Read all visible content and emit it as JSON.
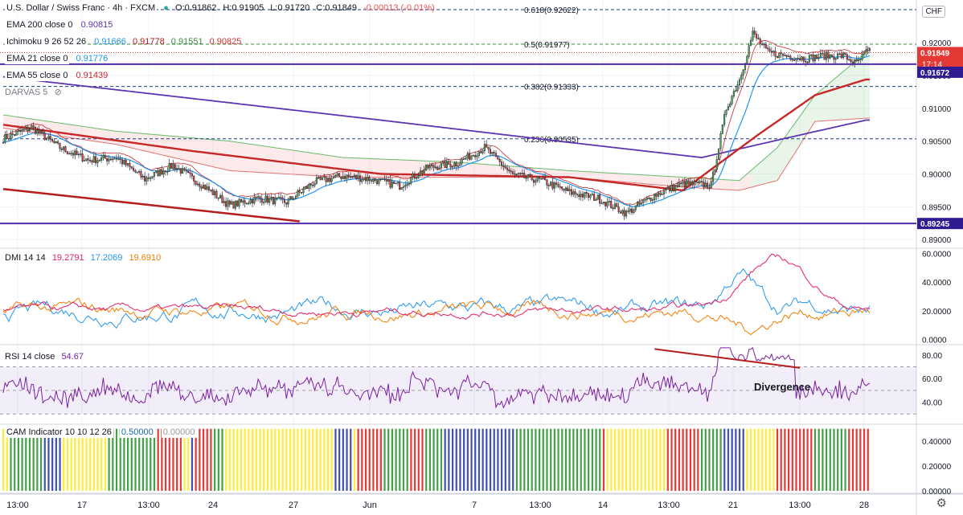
{
  "header": {
    "symbol": "U.S. Dollar / Swiss Franc · 4h · FXCM",
    "o": "O:0.91862",
    "h": "H:0.91905",
    "l": "L:0.91720",
    "c": "C:0.91849",
    "change": "-0.00013 (-0.01%)"
  },
  "currency_button": "CHF",
  "settings_icon": "gear-icon",
  "indicators": {
    "ema200": {
      "label": "EMA 200 close 0",
      "value": "0.90815"
    },
    "ichimoku": {
      "label": "Ichimoku 9 26 52 26",
      "v1": "0.91666",
      "v2": "0.91778",
      "v3": "0.91551",
      "v4": "0.90825"
    },
    "ema21": {
      "label": "EMA 21 close 0",
      "value": "0.91776"
    },
    "ema55": {
      "label": "EMA 55 close 0",
      "value": "0.91439"
    },
    "darvas": {
      "label": "DARVAS 5"
    },
    "dmi": {
      "label": "DMI 14 14",
      "v1": "19.2791",
      "v2": "17.2069",
      "v3": "19.6910"
    },
    "rsi": {
      "label": "RSI 14 close",
      "value": "54.67"
    },
    "cam": {
      "label": "CAM Indicator 10 10 12 26",
      "v1": "0.50000",
      "v2": "0.00000"
    }
  },
  "price_labels": {
    "last": "0.91849",
    "countdown": "17:14",
    "line1": "0.91672",
    "line2": "0.89245"
  },
  "fib_labels": [
    "0.618(0.92622)",
    "0.5(0.91977)",
    "0.382(0.91333)",
    "0.236(0.90535)"
  ],
  "annotation": "Divergence",
  "colors": {
    "up": "#26a69a",
    "down": "#ef5350",
    "ema200": "#5e35b1",
    "ema55": "#c62828",
    "ema21": "#2196f3",
    "rsi": "#7b1fa2",
    "dmi_plus": "#2196f3",
    "dmi_minus": "#e91e63",
    "adx": "#f57c00"
  },
  "chart_data": {
    "type": "candlestick",
    "panes": [
      "price",
      "DMI",
      "RSI",
      "CAM"
    ],
    "x_ticks": [
      "13:00",
      "17",
      "13:00",
      "24",
      "27",
      "Jun",
      "7",
      "13:00",
      "14",
      "13:00",
      "21",
      "13:00",
      "28"
    ],
    "price_axis": {
      "ticks": [
        "0.92000",
        "0.91500",
        "0.91000",
        "0.90500",
        "0.90000",
        "0.89500",
        "0.89000"
      ],
      "ylim": [
        0.8888,
        0.9265
      ]
    },
    "dmi_axis": {
      "ticks": [
        "60.0000",
        "40.0000",
        "20.0000",
        "0.0000"
      ],
      "ylim": [
        -3,
        63
      ]
    },
    "rsi_axis": {
      "ticks": [
        "80.00",
        "60.00",
        "40.00"
      ],
      "ylim": [
        22,
        88
      ]
    },
    "cam_axis": {
      "ticks": [
        "0.40000",
        "0.20000",
        "0.00000"
      ],
      "ylim": [
        -0.02,
        0.53
      ]
    },
    "price_anchors": [
      [
        0,
        0.9054
      ],
      [
        15,
        0.9071
      ],
      [
        30,
        0.904
      ],
      [
        45,
        0.9021
      ],
      [
        60,
        0.9025
      ],
      [
        75,
        0.8992
      ],
      [
        90,
        0.9013
      ],
      [
        105,
        0.8984
      ],
      [
        120,
        0.8952
      ],
      [
        135,
        0.8963
      ],
      [
        150,
        0.8957
      ],
      [
        165,
        0.8988
      ],
      [
        180,
        0.8997
      ],
      [
        195,
        0.8992
      ],
      [
        210,
        0.8982
      ],
      [
        225,
        0.901
      ],
      [
        240,
        0.9016
      ],
      [
        255,
        0.904
      ],
      [
        270,
        0.8998
      ],
      [
        285,
        0.899
      ],
      [
        300,
        0.8972
      ],
      [
        315,
        0.8963
      ],
      [
        330,
        0.894
      ],
      [
        345,
        0.8968
      ],
      [
        360,
        0.8985
      ],
      [
        375,
        0.8983
      ],
      [
        383,
        0.91
      ],
      [
        390,
        0.9144
      ],
      [
        397,
        0.9214
      ],
      [
        405,
        0.9185
      ],
      [
        415,
        0.918
      ],
      [
        425,
        0.9176
      ],
      [
        435,
        0.918
      ],
      [
        445,
        0.918
      ],
      [
        452,
        0.9168
      ],
      [
        457,
        0.9185
      ]
    ],
    "ema200": [
      [
        0,
        0.9148
      ],
      [
        100,
        0.9115
      ],
      [
        200,
        0.9082
      ],
      [
        300,
        0.9048
      ],
      [
        370,
        0.9025
      ],
      [
        420,
        0.9058
      ],
      [
        457,
        0.9082
      ]
    ],
    "ema55": [
      [
        0,
        0.9075
      ],
      [
        100,
        0.9035
      ],
      [
        200,
        0.9
      ],
      [
        300,
        0.8995
      ],
      [
        360,
        0.8975
      ],
      [
        400,
        0.906
      ],
      [
        430,
        0.912
      ],
      [
        457,
        0.9144
      ]
    ],
    "ema21_source": "smoothed close",
    "cloud": [
      [
        0,
        0.909,
        0.907
      ],
      [
        60,
        0.9065,
        0.9045
      ],
      [
        120,
        0.905,
        0.9005
      ],
      [
        180,
        0.9025,
        0.8995
      ],
      [
        240,
        0.9018,
        0.8995
      ],
      [
        300,
        0.9005,
        0.8995
      ],
      [
        360,
        0.8995,
        0.898
      ],
      [
        390,
        0.899,
        0.8975
      ],
      [
        410,
        0.904,
        0.899
      ],
      [
        430,
        0.912,
        0.908
      ],
      [
        457,
        0.9185,
        0.9085
      ]
    ],
    "fib_levels": [
      {
        "ratio": 0.618,
        "price": 0.92622
      },
      {
        "ratio": 0.5,
        "price": 0.91977
      },
      {
        "ratio": 0.382,
        "price": 0.91333
      },
      {
        "ratio": 0.236,
        "price": 0.90535
      }
    ],
    "horizontal_lines": [
      0.91672,
      0.89245
    ],
    "trend_line": [
      [
        0,
        0.8977
      ],
      [
        140,
        0.89278
      ]
    ],
    "rsi_bands": [
      70,
      50,
      30
    ],
    "rsi_divergence_line": [
      [
        345,
        85
      ],
      [
        422,
        69
      ]
    ],
    "cam_colors": [
      "#3f51b5",
      "#ffeb3b",
      "#e53935",
      "#43a047"
    ]
  }
}
